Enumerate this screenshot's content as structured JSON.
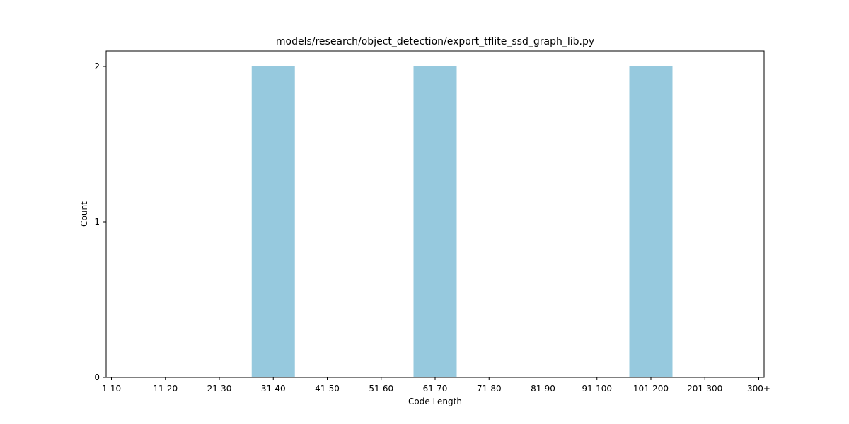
{
  "chart_data": {
    "type": "bar",
    "title": "models/research/object_detection/export_tflite_ssd_graph_lib.py",
    "xlabel": "Code Length",
    "ylabel": "Count",
    "categories": [
      "1-10",
      "11-20",
      "21-30",
      "31-40",
      "41-50",
      "51-60",
      "61-70",
      "71-80",
      "81-90",
      "91-100",
      "101-200",
      "201-300",
      "300+"
    ],
    "values": [
      0,
      0,
      0,
      2,
      0,
      0,
      2,
      0,
      0,
      0,
      2,
      0,
      0
    ],
    "ylim": [
      0,
      2.1
    ],
    "yticks": [
      0,
      1,
      2
    ],
    "bar_color": "#96c9de",
    "grid": false,
    "legend": "none"
  }
}
